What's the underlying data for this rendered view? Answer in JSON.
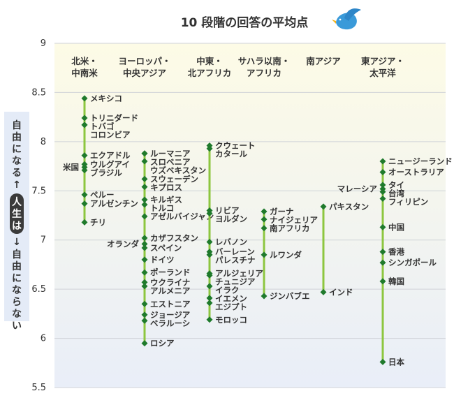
{
  "chart_data": {
    "type": "scatter",
    "title": "10 段階の回答の平均点",
    "ylabel_top": "自由になる",
    "ylabel_mid": "人生は",
    "ylabel_bottom": "自由にならない",
    "arrow_glyph": "↑",
    "arrow_glyph_down": "↓",
    "ylim": [
      5.5,
      9
    ],
    "yticks": [
      "9",
      "8.5",
      "8",
      "7.5",
      "7",
      "6.5",
      "6",
      "5.5"
    ],
    "colors": {
      "line": "#8dc63f",
      "marker": "#1f7a2c",
      "bg_top": "#fdfbe6",
      "bg_bottom": "#e9eef8",
      "side_bg": "#e4ebf7",
      "bird": "#3a9ad9"
    },
    "categories": [
      {
        "name": [
          "北米・",
          "中南米"
        ],
        "points": [
          {
            "label": "メキシコ",
            "value": 8.44,
            "side": "right"
          },
          {
            "label": "トリニダード",
            "value": 8.24,
            "side": "right"
          },
          {
            "label": "トバゴ",
            "value": 8.17,
            "side": "right"
          },
          {
            "label": "コロンビア",
            "value": 8.17,
            "side": "right"
          },
          {
            "label": "エクアドル",
            "value": 7.86,
            "side": "right"
          },
          {
            "label": "ウルグアイ",
            "value": 7.77,
            "side": "right"
          },
          {
            "label": "米国",
            "value": 7.74,
            "side": "left"
          },
          {
            "label": "ブラジル",
            "value": 7.71,
            "side": "right"
          },
          {
            "label": "ペルー",
            "value": 7.46,
            "side": "right"
          },
          {
            "label": "アルゼンチン",
            "value": 7.37,
            "side": "right"
          },
          {
            "label": "チリ",
            "value": 7.18,
            "side": "right"
          }
        ]
      },
      {
        "name": [
          "ヨーロッパ・",
          "中央アジア"
        ],
        "points": [
          {
            "label": "ルーマニア",
            "value": 7.88,
            "side": "right"
          },
          {
            "label": "スロベニア",
            "value": 7.88,
            "side": "right"
          },
          {
            "label": "ウズベキスタン",
            "value": 7.8,
            "side": "right"
          },
          {
            "label": "スウェーデン",
            "value": 7.62,
            "side": "right"
          },
          {
            "label": "キプロス",
            "value": 7.54,
            "side": "right"
          },
          {
            "label": "キルギス",
            "value": 7.41,
            "side": "right"
          },
          {
            "label": "トルコ",
            "value": 7.36,
            "side": "right"
          },
          {
            "label": "アゼルバイジャン",
            "value": 7.24,
            "side": "right"
          },
          {
            "label": "カザフスタン",
            "value": 7.02,
            "side": "right"
          },
          {
            "label": "オランダ",
            "value": 6.96,
            "side": "left"
          },
          {
            "label": "スペイン",
            "value": 6.92,
            "side": "right"
          },
          {
            "label": "ドイツ",
            "value": 6.8,
            "side": "right"
          },
          {
            "label": "ポーランド",
            "value": 6.67,
            "side": "right"
          },
          {
            "label": "ウクライナ",
            "value": 6.57,
            "side": "right"
          },
          {
            "label": "アルメニア",
            "value": 6.53,
            "side": "right"
          },
          {
            "label": "エストニア",
            "value": 6.35,
            "side": "right"
          },
          {
            "label": "ジョージア",
            "value": 6.24,
            "side": "right"
          },
          {
            "label": "ベラルーシ",
            "value": 6.18,
            "side": "right"
          },
          {
            "label": "ロシア",
            "value": 5.95,
            "side": "right"
          }
        ]
      },
      {
        "name": [
          "中東・",
          "北アフリカ"
        ],
        "points": [
          {
            "label": "クウェート",
            "value": 7.96,
            "side": "right"
          },
          {
            "label": "カタール",
            "value": 7.93,
            "side": "right"
          },
          {
            "label": "リビア",
            "value": 7.3,
            "side": "right"
          },
          {
            "label": "ヨルダン",
            "value": 7.27,
            "side": "right"
          },
          {
            "label": "レバノン",
            "value": 6.98,
            "side": "right"
          },
          {
            "label": "バーレーン",
            "value": 6.88,
            "side": "right"
          },
          {
            "label": "パレスチナ",
            "value": 6.85,
            "side": "right"
          },
          {
            "label": "アルジェリア",
            "value": 6.66,
            "side": "right"
          },
          {
            "label": "チュニジア",
            "value": 6.64,
            "side": "right"
          },
          {
            "label": "イラク",
            "value": 6.53,
            "side": "right"
          },
          {
            "label": "イエメン",
            "value": 6.41,
            "side": "right"
          },
          {
            "label": "エジプト",
            "value": 6.36,
            "side": "right"
          },
          {
            "label": "モロッコ",
            "value": 6.19,
            "side": "right"
          }
        ]
      },
      {
        "name": [
          "サハラ以南・",
          "アフリカ"
        ],
        "points": [
          {
            "label": "ガーナ",
            "value": 7.29,
            "side": "right"
          },
          {
            "label": "ナイジェリア",
            "value": 7.21,
            "side": "right"
          },
          {
            "label": "南アフリカ",
            "value": 7.12,
            "side": "right"
          },
          {
            "label": "ルワンダ",
            "value": 6.85,
            "side": "right"
          },
          {
            "label": "ジンバブエ",
            "value": 6.43,
            "side": "right"
          }
        ]
      },
      {
        "name": [
          "南アジア"
        ],
        "points": [
          {
            "label": "パキスタン",
            "value": 7.34,
            "side": "right"
          },
          {
            "label": "インド",
            "value": 6.47,
            "side": "right"
          }
        ]
      },
      {
        "name": [
          "東アジア・",
          "太平洋"
        ],
        "points": [
          {
            "label": "ニュージーランド",
            "value": 7.8,
            "side": "right"
          },
          {
            "label": "オーストラリア",
            "value": 7.69,
            "side": "right"
          },
          {
            "label": "タイ",
            "value": 7.56,
            "side": "right"
          },
          {
            "label": "マレーシア",
            "value": 7.52,
            "side": "left"
          },
          {
            "label": "台湾",
            "value": 7.49,
            "side": "right"
          },
          {
            "label": "フィリピン",
            "value": 7.42,
            "side": "right"
          },
          {
            "label": "中国",
            "value": 7.13,
            "side": "right"
          },
          {
            "label": "香港",
            "value": 6.88,
            "side": "right"
          },
          {
            "label": "シンガポール",
            "value": 6.77,
            "side": "right"
          },
          {
            "label": "韓国",
            "value": 6.58,
            "side": "right"
          },
          {
            "label": "日本",
            "value": 5.76,
            "side": "right"
          }
        ]
      }
    ]
  }
}
